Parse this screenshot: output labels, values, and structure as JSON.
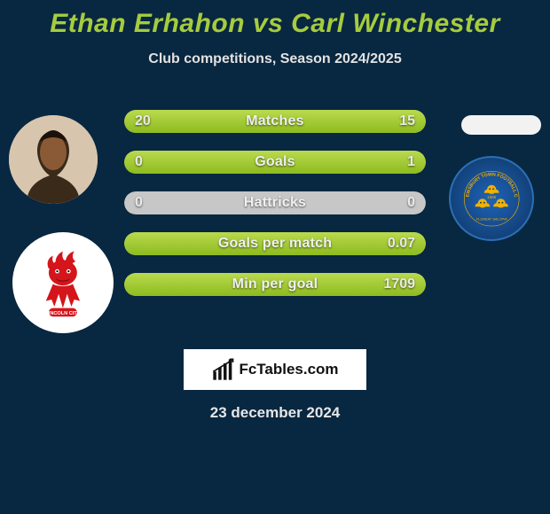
{
  "title": {
    "player1": "Ethan Erhahon",
    "vs": "vs",
    "player2": "Carl Winchester",
    "color": "#a6cc3e",
    "fontsize": 30
  },
  "subtitle": {
    "text": "Club competitions, Season 2024/2025",
    "fontsize": 16
  },
  "bars": {
    "label_fontsize": 16,
    "value_fontsize": 16,
    "fill_color_top": "#bada4e",
    "fill_color_bottom": "#8dbb1f",
    "empty_color": "#c7c7c7",
    "items": [
      {
        "label": "Matches",
        "left": "20",
        "right": "15",
        "left_fill_pct": 50,
        "right_fill_pct": 50
      },
      {
        "label": "Goals",
        "left": "0",
        "right": "1",
        "left_fill_pct": 0,
        "right_fill_pct": 100
      },
      {
        "label": "Hattricks",
        "left": "0",
        "right": "0",
        "left_fill_pct": 0,
        "right_fill_pct": 0
      },
      {
        "label": "Goals per match",
        "left": "",
        "right": "0.07",
        "left_fill_pct": 0,
        "right_fill_pct": 100
      },
      {
        "label": "Min per goal",
        "left": "",
        "right": "1709",
        "left_fill_pct": 0,
        "right_fill_pct": 100
      }
    ]
  },
  "avatars": {
    "player1_icon": "person-silhouette",
    "player2_icon": "blank-oval",
    "club1_name": "Lincoln City",
    "club1_icon": "imp-crest",
    "club1_primary_color": "#d4151b",
    "club2_name": "Shrewsbury Town",
    "club2_icon": "loggerheads-crest",
    "club2_primary_color": "#f2b100"
  },
  "brand": {
    "icon": "bar-chart-icon",
    "text": "FcTables.com",
    "fontsize": 17
  },
  "date": {
    "text": "23 december 2024",
    "fontsize": 17
  },
  "background_color": "#082740"
}
